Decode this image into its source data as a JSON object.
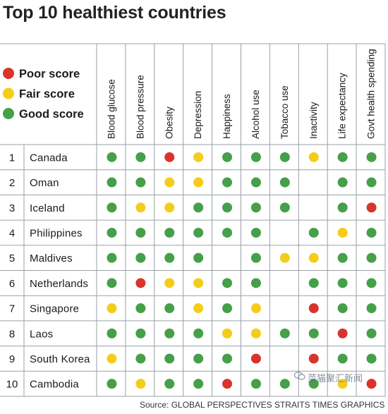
{
  "title": "Top 10 healthiest countries",
  "legend": [
    {
      "label": "Poor score",
      "color": "#d9342b"
    },
    {
      "label": "Fair score",
      "color": "#f3cd1a"
    },
    {
      "label": "Good score",
      "color": "#45a049"
    }
  ],
  "source": "Source: GLOBAL PERSPECTIVES   STRAITS TIMES GRAPHICS",
  "watermark": "菜猫聚汇新闻",
  "chart_data": {
    "type": "table",
    "title": "Top 10 healthiest countries",
    "columns": [
      "Blood glucose",
      "Blood pressure",
      "Obesity",
      "Depression",
      "Happiness",
      "Alcohol use",
      "Tobacco use",
      "Inactivity",
      "Life expectancy",
      "Govt health spending"
    ],
    "rows": [
      {
        "rank": "1",
        "country": "Canada",
        "scores": [
          "good",
          "good",
          "poor",
          "fair",
          "good",
          "good",
          "good",
          "fair",
          "good",
          "good"
        ]
      },
      {
        "rank": "2",
        "country": "Oman",
        "scores": [
          "good",
          "good",
          "fair",
          "fair",
          "good",
          "good",
          "good",
          "",
          "good",
          "good"
        ]
      },
      {
        "rank": "3",
        "country": "Iceland",
        "scores": [
          "good",
          "fair",
          "fair",
          "good",
          "good",
          "good",
          "good",
          "",
          "good",
          "poor"
        ]
      },
      {
        "rank": "4",
        "country": "Philippines",
        "scores": [
          "good",
          "good",
          "good",
          "good",
          "good",
          "good",
          "",
          "good",
          "fair",
          "good"
        ]
      },
      {
        "rank": "5",
        "country": "Maldives",
        "scores": [
          "good",
          "good",
          "good",
          "good",
          "",
          "good",
          "fair",
          "fair",
          "good",
          "good"
        ]
      },
      {
        "rank": "6",
        "country": "Netherlands",
        "scores": [
          "good",
          "poor",
          "fair",
          "fair",
          "good",
          "good",
          "",
          "good",
          "good",
          "good"
        ]
      },
      {
        "rank": "7",
        "country": "Singapore",
        "scores": [
          "fair",
          "good",
          "good",
          "fair",
          "good",
          "fair",
          "",
          "poor",
          "good",
          "good"
        ]
      },
      {
        "rank": "8",
        "country": "Laos",
        "scores": [
          "good",
          "good",
          "good",
          "good",
          "fair",
          "fair",
          "good",
          "good",
          "poor",
          "good"
        ]
      },
      {
        "rank": "9",
        "country": "South Korea",
        "scores": [
          "fair",
          "good",
          "good",
          "good",
          "good",
          "poor",
          "",
          "poor",
          "good",
          "good"
        ]
      },
      {
        "rank": "10",
        "country": "Cambodia",
        "scores": [
          "good",
          "fair",
          "good",
          "good",
          "poor",
          "good",
          "good",
          "good",
          "fair",
          "poor"
        ]
      }
    ]
  }
}
